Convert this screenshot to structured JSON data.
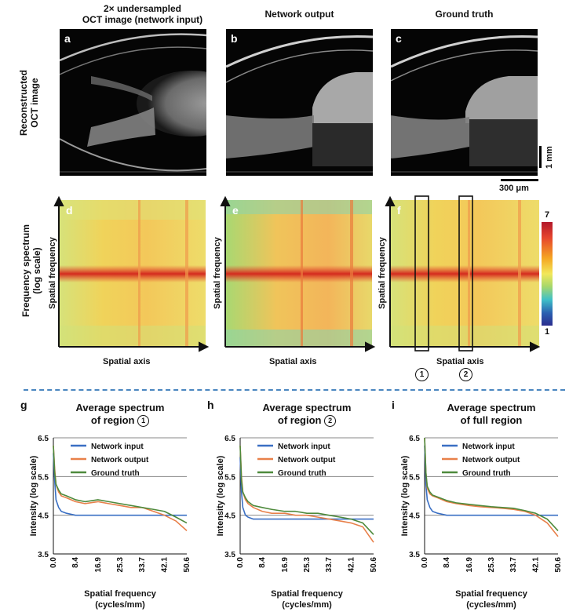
{
  "columns": {
    "col1": "2× undersampled OCT image (network input)",
    "col1_line1": "2× undersampled",
    "col1_line2": "OCT image (network input)",
    "col2": "Network output",
    "col3": "Ground truth"
  },
  "rows": {
    "oct_line1": "Reconstructed",
    "oct_line2": "OCT image",
    "spec_line1": "Frequency spectrum",
    "spec_line2": "(log scale)"
  },
  "oct_panels": [
    "a",
    "b",
    "c"
  ],
  "spectrum_panels": [
    "d",
    "e",
    "f"
  ],
  "scale_bars": {
    "vertical": "1 mm",
    "horizontal": "300 μm"
  },
  "spectrum_axes": {
    "y": "Spatial frequency",
    "x": "Spatial axis"
  },
  "colorbar": {
    "max": "7",
    "min": "1",
    "colors": [
      "#b2182b",
      "#e6452d",
      "#f5a623",
      "#f2e85a",
      "#a8d86a",
      "#3fc0c8",
      "#2a5fb0",
      "#2b2d8e"
    ]
  },
  "regions": [
    "1",
    "2"
  ],
  "colors": {
    "network_input": "#3a6fc4",
    "network_output": "#e8804a",
    "ground_truth": "#4e8a3c",
    "divider": "#4a86c0"
  },
  "chart_data": [
    {
      "panel": "g",
      "type": "line",
      "title_line1": "Average spectrum",
      "title_line2": "of region",
      "title_region": "1",
      "xlabel": "Spatial frequency",
      "xlabel_units": "(cycles/mm)",
      "ylabel": "Intensity (log scale)",
      "xticks": [
        "0.0",
        "8.4",
        "16.9",
        "25.3",
        "33.7",
        "42.1",
        "50.6"
      ],
      "yticks": [
        "3.5",
        "4.5",
        "5.5",
        "6.5"
      ],
      "xlim": [
        0,
        50.6
      ],
      "ylim": [
        3.5,
        6.5
      ],
      "legend": "top-right",
      "x": [
        0.0,
        0.5,
        1.0,
        2.0,
        3.0,
        5.0,
        8.4,
        12.0,
        16.9,
        21.0,
        25.3,
        29.5,
        33.7,
        38.0,
        42.1,
        46.5,
        50.6
      ],
      "series": [
        {
          "name": "Network input",
          "values": [
            6.1,
            5.4,
            4.9,
            4.7,
            4.6,
            4.55,
            4.5,
            4.5,
            4.5,
            4.5,
            4.5,
            4.5,
            4.5,
            4.5,
            4.5,
            4.5,
            4.5
          ]
        },
        {
          "name": "Network output",
          "values": [
            6.3,
            5.7,
            5.3,
            5.1,
            5.0,
            4.95,
            4.85,
            4.8,
            4.85,
            4.8,
            4.75,
            4.7,
            4.7,
            4.6,
            4.5,
            4.35,
            4.1
          ]
        },
        {
          "name": "Ground truth",
          "values": [
            6.3,
            5.6,
            5.3,
            5.15,
            5.05,
            5.0,
            4.9,
            4.85,
            4.9,
            4.85,
            4.8,
            4.75,
            4.7,
            4.65,
            4.6,
            4.45,
            4.3
          ]
        }
      ]
    },
    {
      "panel": "h",
      "type": "line",
      "title_line1": "Average spectrum",
      "title_line2": "of region",
      "title_region": "2",
      "xlabel": "Spatial frequency",
      "xlabel_units": "(cycles/mm)",
      "ylabel": "Intensity (log scale)",
      "xticks": [
        "0.0",
        "8.4",
        "16.9",
        "25.3",
        "33.7",
        "42.1",
        "50.6"
      ],
      "yticks": [
        "3.5",
        "4.5",
        "5.5",
        "6.5"
      ],
      "xlim": [
        0,
        50.6
      ],
      "ylim": [
        3.5,
        6.5
      ],
      "legend": "top-right",
      "x": [
        0.0,
        0.5,
        1.0,
        2.0,
        3.0,
        5.0,
        8.4,
        12.0,
        16.9,
        21.0,
        25.3,
        29.5,
        33.7,
        38.0,
        42.1,
        46.5,
        50.6
      ],
      "series": [
        {
          "name": "Network input",
          "values": [
            6.0,
            5.1,
            4.7,
            4.5,
            4.45,
            4.4,
            4.4,
            4.4,
            4.4,
            4.4,
            4.4,
            4.4,
            4.4,
            4.4,
            4.4,
            4.4,
            4.4
          ]
        },
        {
          "name": "Network output",
          "values": [
            6.3,
            5.5,
            5.1,
            4.9,
            4.8,
            4.7,
            4.6,
            4.55,
            4.55,
            4.5,
            4.5,
            4.45,
            4.4,
            4.35,
            4.3,
            4.2,
            3.8
          ]
        },
        {
          "name": "Ground truth",
          "values": [
            6.3,
            5.4,
            5.1,
            4.95,
            4.85,
            4.75,
            4.7,
            4.65,
            4.6,
            4.6,
            4.55,
            4.55,
            4.5,
            4.45,
            4.4,
            4.3,
            4.0
          ]
        }
      ]
    },
    {
      "panel": "i",
      "type": "line",
      "title_line1": "Average spectrum",
      "title_line2": "of full region",
      "title_region": "",
      "xlabel": "Spatial frequency",
      "xlabel_units": "(cycles/mm)",
      "ylabel": "Intensity (log scale)",
      "xticks": [
        "0.0",
        "8.4",
        "16.9",
        "25.3",
        "33.7",
        "42.1",
        "50.6"
      ],
      "yticks": [
        "3.5",
        "4.5",
        "5.5",
        "6.5"
      ],
      "xlim": [
        0,
        50.6
      ],
      "ylim": [
        3.5,
        6.5
      ],
      "legend": "top-right",
      "x": [
        0.0,
        0.5,
        1.0,
        2.0,
        3.0,
        5.0,
        8.4,
        12.0,
        16.9,
        21.0,
        25.3,
        29.5,
        33.7,
        38.0,
        42.1,
        46.5,
        50.6
      ],
      "series": [
        {
          "name": "Network input",
          "values": [
            6.3,
            5.3,
            4.9,
            4.7,
            4.6,
            4.55,
            4.5,
            4.5,
            4.5,
            4.5,
            4.5,
            4.5,
            4.5,
            4.5,
            4.5,
            4.5,
            4.5
          ]
        },
        {
          "name": "Network output",
          "values": [
            6.5,
            5.6,
            5.2,
            5.05,
            5.0,
            4.95,
            4.85,
            4.8,
            4.75,
            4.72,
            4.7,
            4.68,
            4.65,
            4.6,
            4.5,
            4.3,
            3.95
          ]
        },
        {
          "name": "Ground truth",
          "values": [
            6.5,
            5.6,
            5.25,
            5.1,
            5.02,
            4.97,
            4.88,
            4.82,
            4.78,
            4.75,
            4.72,
            4.7,
            4.68,
            4.62,
            4.55,
            4.4,
            4.1
          ]
        }
      ]
    }
  ]
}
